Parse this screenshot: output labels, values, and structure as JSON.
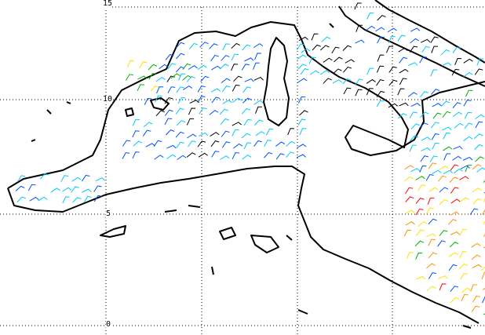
{
  "map": {
    "grid_labels": [
      "15",
      "10",
      "5",
      "0"
    ],
    "grid_style": "dotted",
    "coastline_color": "#000000",
    "wind_barb_colors": [
      "#00c8ff",
      "#0050ff",
      "#000000",
      "#00b000",
      "#ffe000",
      "#ff9000",
      "#ff0000"
    ]
  }
}
